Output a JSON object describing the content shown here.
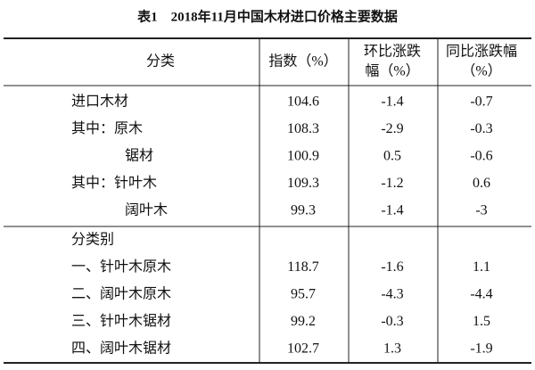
{
  "header": {
    "title": "表1　2018年11月中国木材进口价格主要数据"
  },
  "table": {
    "columns": [
      [
        "分类"
      ],
      [
        "指数（%）"
      ],
      [
        "环比涨跌",
        "幅（%）"
      ],
      [
        "同比涨跌幅",
        "（%）"
      ]
    ],
    "groups": [
      {
        "rows": [
          [
            "进口木材",
            "104.6",
            "-1.4",
            "-0.7"
          ],
          [
            "其中：原木",
            "108.3",
            "-2.9",
            "-0.3"
          ],
          [
            "锯材",
            "100.9",
            "0.5",
            "-0.6"
          ],
          [
            "其中：针叶木",
            "109.3",
            "-1.2",
            "0.6"
          ],
          [
            "阔叶木",
            "99.3",
            "-1.4",
            "-3"
          ]
        ]
      },
      {
        "heading": "分类别",
        "rows": [
          [
            "一、针叶木原木",
            "118.7",
            "-1.6",
            "1.1"
          ],
          [
            "二、阔叶木原木",
            "95.7",
            "-4.3",
            "-4.4"
          ],
          [
            "三、针叶木锯材",
            "99.2",
            "-0.3",
            "1.5"
          ],
          [
            "四、阔叶木锯材",
            "102.7",
            "1.3",
            "-1.9"
          ]
        ]
      }
    ]
  }
}
